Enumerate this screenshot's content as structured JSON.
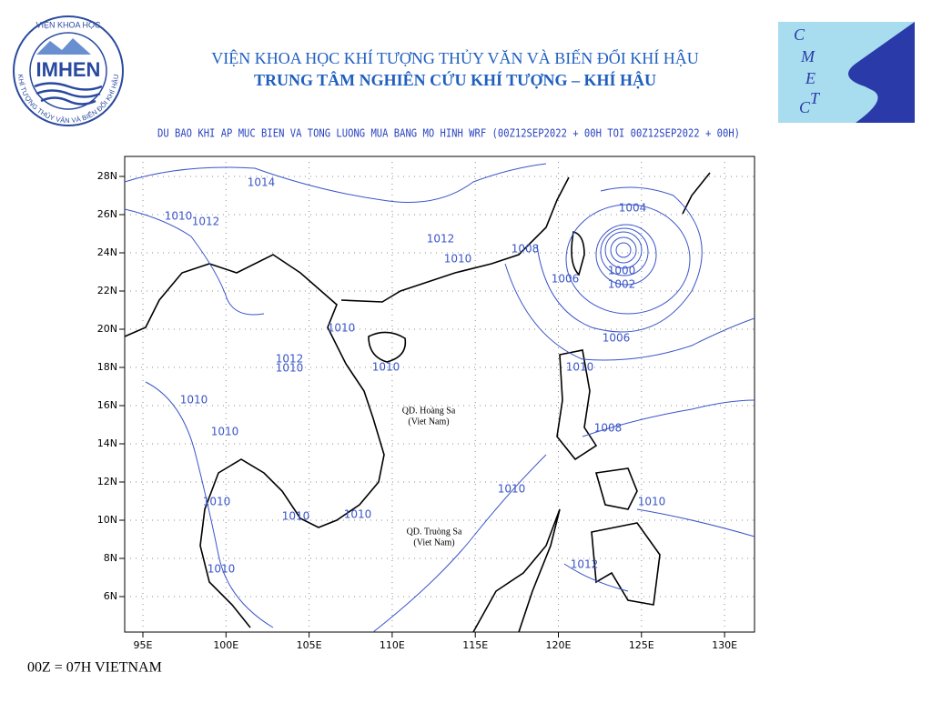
{
  "header": {
    "title": "VIỆN KHOA HỌC KHÍ TƯỢNG THỦY VĂN VÀ BIẾN ĐỔI KHÍ HẬU",
    "subtitle": "TRUNG TÂM NGHIÊN CỨU KHÍ TƯỢNG – KHÍ HẬU"
  },
  "logos": {
    "left": {
      "top_text": "VIỆN KHOA HỌC",
      "name": "IMHEN",
      "ring_text": "KHÍ TƯỢNG THỦY VĂN VÀ BIẾN ĐỔI KHÍ HẬU"
    },
    "right": {
      "letters": [
        "C",
        "M",
        "E",
        "T",
        "C"
      ]
    }
  },
  "map": {
    "title": "DU BAO KHI AP MUC BIEN VA TONG LUONG MUA BANG MO HINH WRF (00Z12SEP2022 + 00H TOI 00Z12SEP2022 + 00H)",
    "lon_labels": [
      "95E",
      "100E",
      "105E",
      "110E",
      "115E",
      "120E",
      "125E",
      "130E"
    ],
    "lat_labels": [
      "28N",
      "26N",
      "24N",
      "22N",
      "20N",
      "18N",
      "16N",
      "14N",
      "12N",
      "10N",
      "8N",
      "6N"
    ],
    "contour_labels": [
      "1014",
      "1010",
      "1012",
      "1012",
      "1010",
      "1008",
      "1004",
      "1006",
      "1002",
      "1000",
      "1010",
      "1006",
      "1012",
      "1010",
      "1010",
      "1010",
      "1010",
      "1008",
      "1010",
      "1010",
      "1010",
      "1010",
      "1010",
      "1012",
      "1010",
      "1010"
    ],
    "places": [
      {
        "name": "QD. Hoàng Sa",
        "country": "(Viet Nam)"
      },
      {
        "name": "QD. Truòng Sa",
        "country": "(Viet Nam)"
      }
    ]
  },
  "footer": {
    "note": "00Z = 07H VIETNAM"
  }
}
